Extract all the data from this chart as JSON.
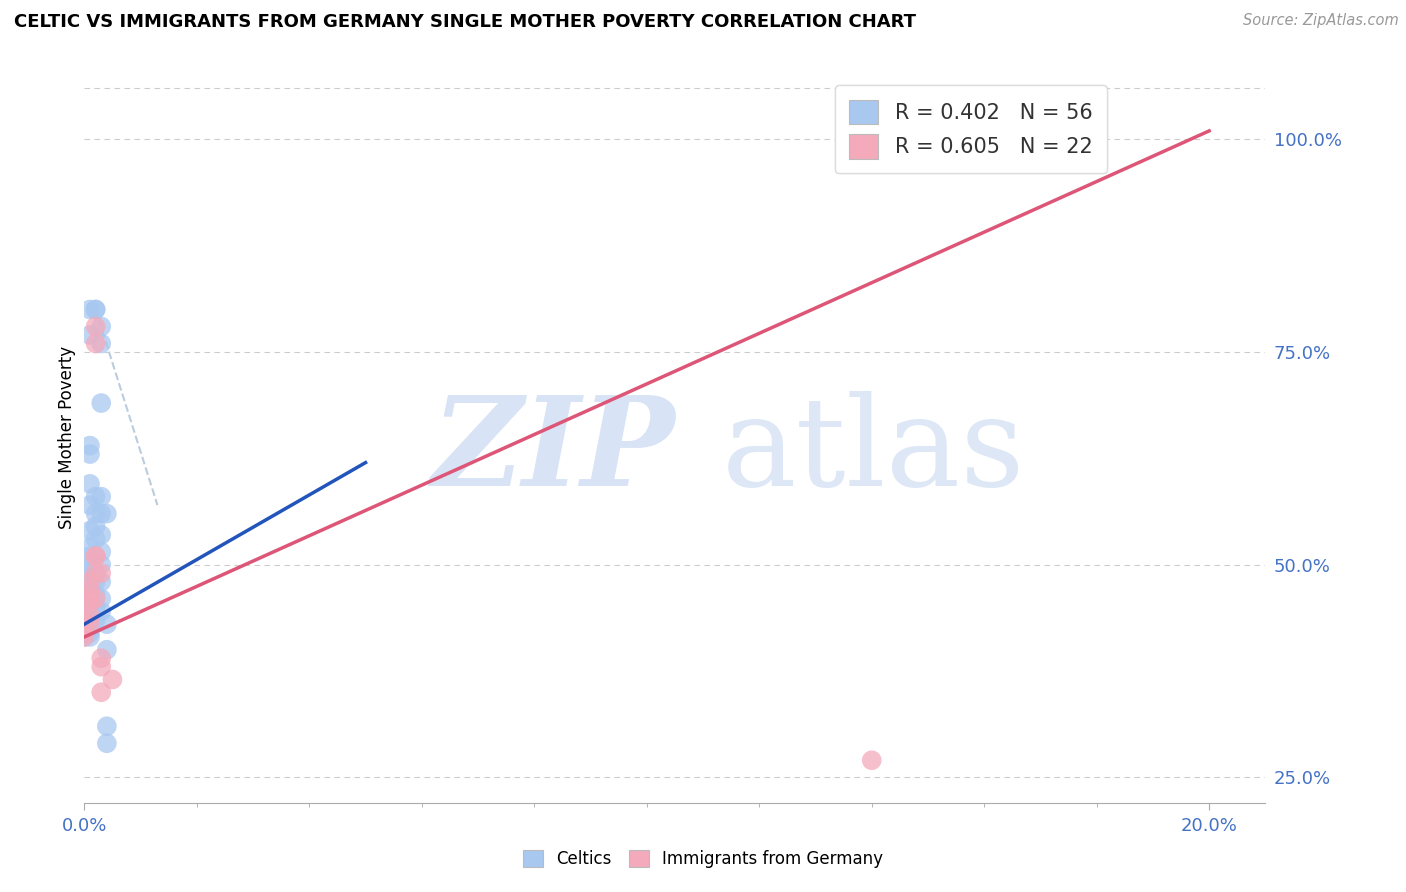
{
  "title": "CELTIC VS IMMIGRANTS FROM GERMANY SINGLE MOTHER POVERTY CORRELATION CHART",
  "source": "Source: ZipAtlas.com",
  "ylabel": "Single Mother Poverty",
  "legend_label1": "Celtics",
  "legend_label2": "Immigrants from Germany",
  "blue_color": "#A8C8F0",
  "pink_color": "#F4AABB",
  "blue_line_color": "#2255BB",
  "pink_line_color": "#DD5577",
  "dashed_line_color": "#BBCCDD",
  "blue_scatter": [
    [
      0.0,
      0.42
    ],
    [
      0.0,
      0.415
    ],
    [
      0.0,
      0.425
    ],
    [
      0.0,
      0.43
    ],
    [
      0.0,
      0.435
    ],
    [
      0.0,
      0.44
    ],
    [
      0.0,
      0.445
    ],
    [
      0.0,
      0.45
    ],
    [
      0.001,
      0.415
    ],
    [
      0.001,
      0.42
    ],
    [
      0.001,
      0.425
    ],
    [
      0.001,
      0.43
    ],
    [
      0.001,
      0.44
    ],
    [
      0.001,
      0.445
    ],
    [
      0.001,
      0.455
    ],
    [
      0.001,
      0.46
    ],
    [
      0.001,
      0.465
    ],
    [
      0.001,
      0.47
    ],
    [
      0.001,
      0.48
    ],
    [
      0.001,
      0.49
    ],
    [
      0.001,
      0.5
    ],
    [
      0.001,
      0.51
    ],
    [
      0.001,
      0.52
    ],
    [
      0.001,
      0.54
    ],
    [
      0.001,
      0.57
    ],
    [
      0.001,
      0.595
    ],
    [
      0.001,
      0.63
    ],
    [
      0.001,
      0.64
    ],
    [
      0.002,
      0.435
    ],
    [
      0.002,
      0.45
    ],
    [
      0.002,
      0.465
    ],
    [
      0.002,
      0.48
    ],
    [
      0.002,
      0.49
    ],
    [
      0.002,
      0.51
    ],
    [
      0.002,
      0.53
    ],
    [
      0.002,
      0.545
    ],
    [
      0.002,
      0.56
    ],
    [
      0.002,
      0.58
    ],
    [
      0.003,
      0.445
    ],
    [
      0.003,
      0.46
    ],
    [
      0.003,
      0.48
    ],
    [
      0.003,
      0.5
    ],
    [
      0.003,
      0.515
    ],
    [
      0.003,
      0.535
    ],
    [
      0.003,
      0.56
    ],
    [
      0.003,
      0.58
    ],
    [
      0.003,
      0.69
    ],
    [
      0.003,
      0.76
    ],
    [
      0.003,
      0.78
    ],
    [
      0.004,
      0.4
    ],
    [
      0.004,
      0.43
    ],
    [
      0.004,
      0.56
    ],
    [
      0.004,
      0.31
    ],
    [
      0.004,
      0.29
    ],
    [
      0.001,
      0.77
    ],
    [
      0.001,
      0.8
    ],
    [
      0.002,
      0.8
    ],
    [
      0.002,
      0.8
    ]
  ],
  "pink_scatter": [
    [
      0.0,
      0.415
    ],
    [
      0.0,
      0.42
    ],
    [
      0.0,
      0.43
    ],
    [
      0.0,
      0.435
    ],
    [
      0.001,
      0.43
    ],
    [
      0.001,
      0.44
    ],
    [
      0.001,
      0.455
    ],
    [
      0.001,
      0.46
    ],
    [
      0.001,
      0.47
    ],
    [
      0.001,
      0.48
    ],
    [
      0.002,
      0.46
    ],
    [
      0.002,
      0.49
    ],
    [
      0.002,
      0.51
    ],
    [
      0.002,
      0.51
    ],
    [
      0.002,
      0.76
    ],
    [
      0.002,
      0.78
    ],
    [
      0.003,
      0.35
    ],
    [
      0.003,
      0.39
    ],
    [
      0.003,
      0.49
    ],
    [
      0.003,
      0.38
    ],
    [
      0.005,
      0.365
    ],
    [
      0.14,
      0.27
    ]
  ],
  "blue_line": [
    [
      0.0,
      0.43
    ],
    [
      0.05,
      0.62
    ]
  ],
  "pink_line": [
    [
      0.0,
      0.415
    ],
    [
      0.2,
      1.01
    ]
  ],
  "dashed_line": [
    [
      0.002,
      0.8
    ],
    [
      0.013,
      0.57
    ]
  ],
  "xlim": [
    0.0,
    0.21
  ],
  "ylim": [
    0.22,
    1.08
  ],
  "ytick_vals": [
    0.25,
    0.5,
    0.75,
    1.0
  ],
  "ytick_labels": [
    "25.0%",
    "50.0%",
    "75.0%",
    "100.0%"
  ],
  "figsize": [
    14.06,
    8.92
  ],
  "dpi": 100
}
